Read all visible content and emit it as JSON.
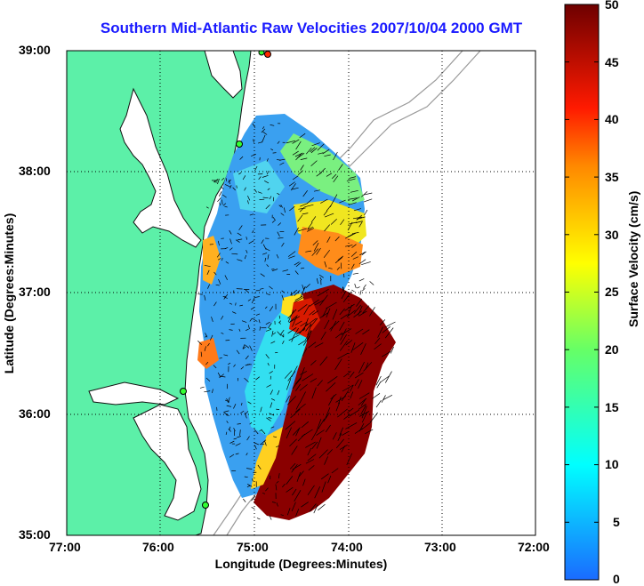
{
  "title": "Southern Mid-Atlantic Raw Velocities 2007/10/04 2000 GMT",
  "x_axis": {
    "label": "Longitude (Degrees:Minutes)",
    "ticks": [
      "77:00",
      "76:00",
      "75:00",
      "74:00",
      "73:00",
      "72:00"
    ]
  },
  "y_axis": {
    "label": "Latitude (Degrees:Minutes)",
    "ticks": [
      "39:00",
      "38:00",
      "37:00",
      "36:00",
      "35:00"
    ]
  },
  "colorbar": {
    "label": "Surface Velocity (cm/s)",
    "ticks": [
      "50",
      "45",
      "40",
      "35",
      "30",
      "25",
      "20",
      "15",
      "10",
      "5",
      "0"
    ],
    "range": [
      0,
      50
    ],
    "colors": {
      "low": "#1a6bff",
      "mid": "#00ffff",
      "upper": "#ffff00",
      "high": "#ff2a00",
      "top": "#7a0000"
    }
  },
  "map": {
    "lon_range": [
      -77,
      -72
    ],
    "lat_range": [
      35,
      39
    ],
    "land_color": "#5cf0a8",
    "grid": true,
    "grid_style": "dotted"
  }
}
